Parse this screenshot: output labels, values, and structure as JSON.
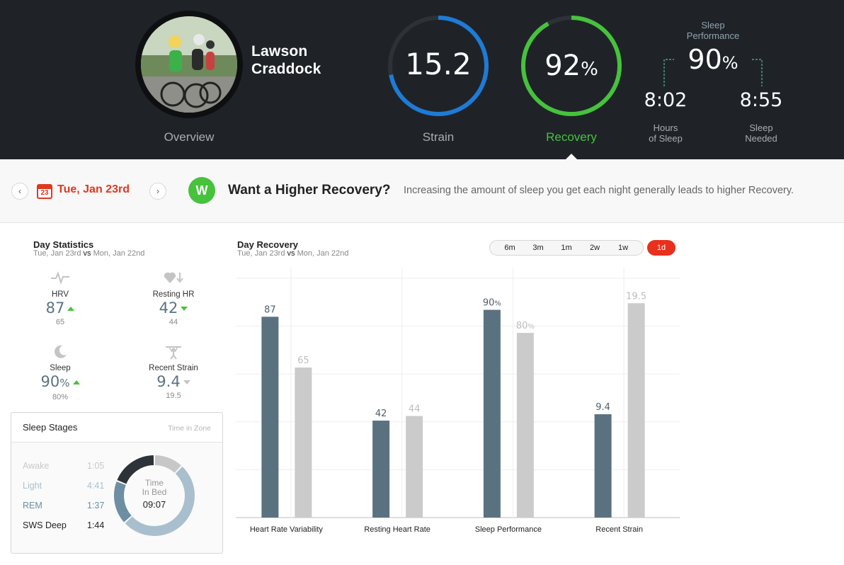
{
  "header": {
    "user_name_line1": "Lawson",
    "user_name_line2": "Craddock",
    "nav": {
      "overview": "Overview",
      "strain": "Strain",
      "recovery": "Recovery"
    },
    "strain_value": "15.2",
    "strain_fraction": 0.72,
    "recovery_value": "92",
    "recovery_unit": "%",
    "recovery_fraction": 0.92,
    "sleep_performance": {
      "title_line1": "Sleep",
      "title_line2": "Performance",
      "value": "90",
      "unit": "%",
      "hours_of_sleep": "8:02",
      "hours_of_sleep_label_line1": "Hours",
      "hours_of_sleep_label_line2": "of Sleep",
      "sleep_needed": "8:55",
      "sleep_needed_label_line1": "Sleep",
      "sleep_needed_label_line2": "Needed"
    },
    "colors": {
      "strain": "#1e7bd6",
      "recovery": "#46c23c",
      "accent": "#e8301d"
    }
  },
  "strip": {
    "prev_icon": "chevron-left-icon",
    "next_icon": "chevron-right-icon",
    "calendar_day": "23",
    "date_label": "Tue, Jan 23rd",
    "logo_letter": "W",
    "message_title": "Want a Higher Recovery?",
    "message_body": "Increasing the amount of sleep you get each night generally leads to higher Recovery."
  },
  "day_statistics": {
    "title": "Day Statistics",
    "subtitle_current": "Tue, Jan 23rd",
    "subtitle_vs": "vs",
    "subtitle_prev": "Mon, Jan 22nd",
    "stats": [
      {
        "icon": "heartbeat-icon",
        "label": "HRV",
        "value": "87",
        "unit": "",
        "trend": "up",
        "prev": "65"
      },
      {
        "icon": "heart-down-icon",
        "label": "Resting HR",
        "value": "42",
        "unit": "",
        "trend": "down",
        "prev": "44"
      },
      {
        "icon": "moon-icon",
        "label": "Sleep",
        "value": "90",
        "unit": "%",
        "trend": "up",
        "prev": "80%"
      },
      {
        "icon": "weightlifter-icon",
        "label": "Recent Strain",
        "value": "9.4",
        "unit": "",
        "trend": "down-grey",
        "prev": "19.5"
      }
    ]
  },
  "sleep_stages": {
    "title": "Sleep Stages",
    "hint": "Time in Zone",
    "stages": [
      {
        "name": "Awake",
        "time": "1:05",
        "color": "#c7c7c7"
      },
      {
        "name": "Light",
        "time": "4:41",
        "color": "#a9bfcd"
      },
      {
        "name": "REM",
        "time": "1:37",
        "color": "#6d8ea3"
      },
      {
        "name": "SWS Deep",
        "time": "1:44",
        "color": "#2d3338"
      }
    ],
    "center_label_line1": "Time",
    "center_label_line2": "In Bed",
    "center_value": "09:07"
  },
  "day_recovery": {
    "title": "Day Recovery",
    "subtitle_current": "Tue, Jan 23rd",
    "subtitle_vs": "vs",
    "subtitle_prev": "Mon, Jan 22nd",
    "ranges": [
      "6m",
      "3m",
      "1m",
      "2w",
      "1w"
    ],
    "active_range": "1d"
  },
  "chart_data": {
    "type": "bar",
    "categories": [
      "Heart Rate Variability",
      "Resting Heart Rate",
      "Sleep Performance",
      "Recent Strain"
    ],
    "series": [
      {
        "values": [
          87,
          42,
          90,
          9.4
        ],
        "labels": [
          "87",
          "42",
          "90%",
          "9.4"
        ],
        "color": "#5a7180"
      },
      {
        "values": [
          65,
          44,
          80,
          19.5
        ],
        "labels": [
          "65",
          "44",
          "80%",
          "19.5"
        ],
        "color": "#cbcbcb"
      }
    ]
  }
}
